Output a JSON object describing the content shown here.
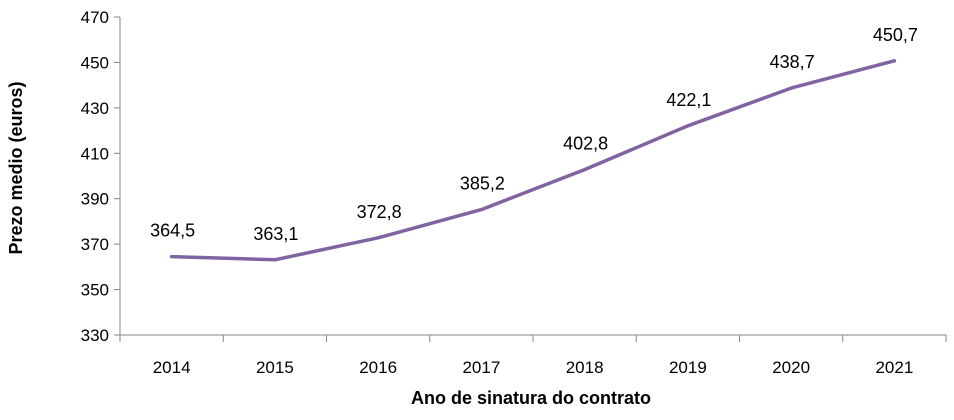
{
  "chart_data": {
    "type": "line",
    "categories": [
      "2014",
      "2015",
      "2016",
      "2017",
      "2018",
      "2019",
      "2020",
      "2021"
    ],
    "series": [
      {
        "values": [
          364.5,
          363.1,
          372.8,
          385.2,
          402.8,
          422.1,
          438.7,
          450.7
        ],
        "labels": [
          "364,5",
          "363,1",
          "372,8",
          "385,2",
          "402,8",
          "422,1",
          "438,7",
          "450,7"
        ],
        "color": "#8064A2"
      }
    ],
    "xlabel": "Ano de sinatura do contrato",
    "ylabel": "Prezo medio (euros)",
    "ylim": [
      330,
      470
    ],
    "yticks": [
      330,
      350,
      370,
      390,
      410,
      430,
      450,
      470
    ],
    "ytick_labels": [
      "330",
      "350",
      "370",
      "390",
      "410",
      "430",
      "450",
      "470"
    ],
    "grid": false,
    "legend": "none",
    "axis_color": "#868686"
  }
}
